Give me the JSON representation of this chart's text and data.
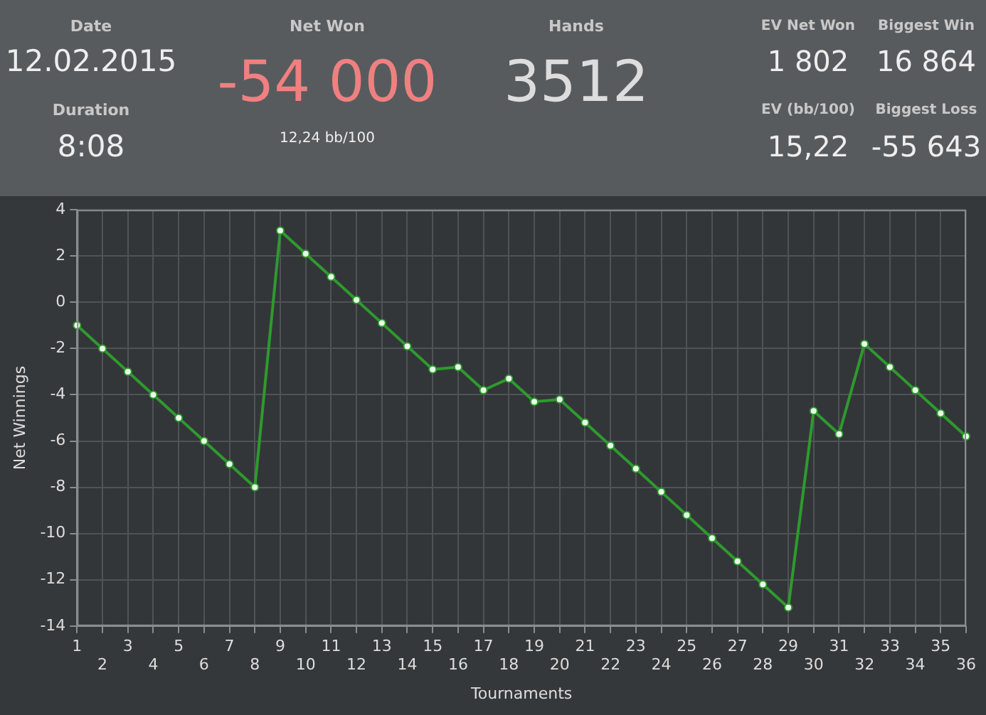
{
  "chart_data": [
    {
      "type": "other",
      "annotations": [
        "Date",
        "12.02.2015",
        "Duration",
        "8:08",
        "Net Won",
        "-54 000",
        "12,24 bb/100",
        "Hands",
        "3512",
        "EV Net Won",
        "1 802",
        "Biggest Win",
        "16 864",
        "EV (bb/100)",
        "15,22",
        "Biggest Loss",
        "-55 643"
      ]
    },
    {
      "type": "line",
      "xlabel": "Tournaments",
      "ylabel": "Net Winnings",
      "categories": [
        "1",
        "2",
        "3",
        "4",
        "5",
        "6",
        "7",
        "8",
        "9",
        "10",
        "11",
        "12",
        "13",
        "14",
        "15",
        "16",
        "17",
        "18",
        "19",
        "20",
        "21",
        "22",
        "23",
        "24",
        "25",
        "26",
        "27",
        "28",
        "29",
        "30",
        "31",
        "32",
        "33",
        "34",
        "35",
        "36"
      ],
      "series": [
        {
          "color": "#2e9a2e",
          "values": [
            -1,
            -2,
            -3,
            -4,
            -5,
            -6,
            -7,
            -8,
            3.1,
            2.1,
            1.1,
            0.1,
            -0.9,
            -1.9,
            -2.9,
            -2.8,
            -3.8,
            -3.3,
            -4.3,
            -4.2,
            -5.2,
            -6.2,
            -7.2,
            -8.2,
            -9.2,
            -10.2,
            -11.2,
            -12.2,
            -13.2,
            -4.7,
            -5.7,
            -1.8,
            -2.8,
            -3.8,
            -4.8,
            -5.8
          ]
        }
      ],
      "ylim": [
        -14,
        4
      ],
      "yticks": [
        -14,
        -12,
        -10,
        -8,
        -6,
        -4,
        -2,
        0,
        2,
        4
      ],
      "grid": true,
      "legend": false,
      "marker": "circle",
      "line_style": "solid"
    }
  ]
}
